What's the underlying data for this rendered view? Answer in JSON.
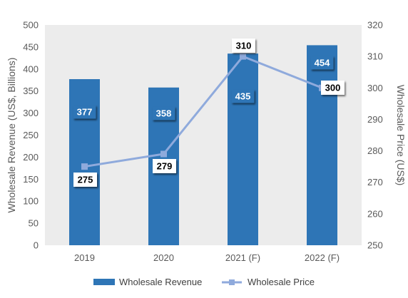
{
  "chart_data": {
    "type": "bar",
    "categories": [
      "2019",
      "2020",
      "2021 (F)",
      "2022 (F)"
    ],
    "series": [
      {
        "name": "Wholesale Revenue",
        "type": "bar",
        "axis": "left",
        "values": [
          377,
          358,
          435,
          454
        ],
        "color": "#2e75b6"
      },
      {
        "name": "Wholesale Price",
        "type": "line",
        "axis": "right",
        "values": [
          275,
          279,
          310,
          300
        ],
        "color": "#8faadc"
      }
    ],
    "ylabel": "Wholesale Revenue (US$, Billions)",
    "y2label": "Wholesale Price (US$)",
    "ylim": [
      0,
      500
    ],
    "y2lim": [
      250,
      320
    ],
    "yticks": [
      "0",
      "50",
      "100",
      "150",
      "200",
      "250",
      "300",
      "350",
      "400",
      "450",
      "500"
    ],
    "y2ticks": [
      "250",
      "260",
      "270",
      "280",
      "290",
      "300",
      "310",
      "320"
    ],
    "grid": false,
    "legend": "bottom",
    "plot_background": "#ececec"
  }
}
